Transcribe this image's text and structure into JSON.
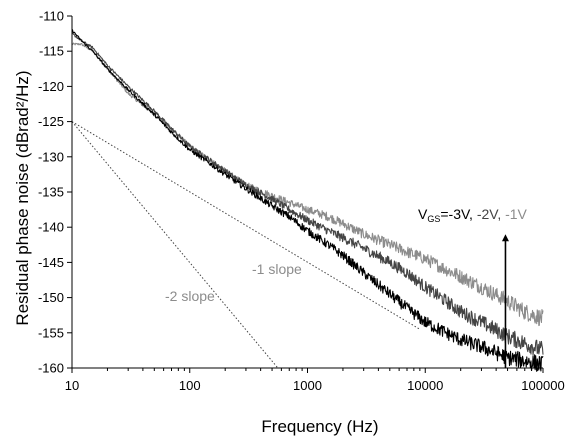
{
  "chart_data": {
    "type": "line",
    "title": "",
    "xlabel": "Frequency (Hz)",
    "ylabel": "Residual phase noise (dBrad²/Hz)",
    "xscale": "log",
    "xlim": [
      10,
      100000
    ],
    "ylim": [
      -160,
      -110
    ],
    "xticks": [
      10,
      100,
      1000,
      10000,
      100000
    ],
    "xtick_labels": [
      "10",
      "100",
      "1000",
      "10000",
      "100000"
    ],
    "yticks": [
      -110,
      -115,
      -120,
      -125,
      -130,
      -135,
      -140,
      -145,
      -150,
      -155,
      -160
    ],
    "ytick_labels": [
      "-110",
      "-115",
      "-120",
      "-125",
      "-130",
      "-135",
      "-140",
      "-145",
      "-150",
      "-155",
      "-160"
    ],
    "grid": false,
    "series": [
      {
        "color": "#000000",
        "x": [
          10,
          12,
          15,
          20,
          30,
          50,
          70,
          100,
          150,
          200,
          300,
          500,
          700,
          1000,
          1500,
          2000,
          3000,
          5000,
          7000,
          10000,
          15000,
          20000,
          30000,
          50000,
          70000,
          100000
        ],
        "y": [
          -112,
          -113.5,
          -115,
          -117.5,
          -120.5,
          -124,
          -126.5,
          -129,
          -131,
          -132.5,
          -134.5,
          -137,
          -138.5,
          -140.5,
          -142.5,
          -144,
          -146.5,
          -149.5,
          -151.5,
          -153.5,
          -155,
          -156,
          -157,
          -158.5,
          -159,
          -159.5
        ]
      },
      {
        "color": "#444444",
        "x": [
          10,
          12,
          15,
          20,
          30,
          50,
          70,
          100,
          150,
          200,
          300,
          500,
          700,
          1000,
          1500,
          2000,
          3000,
          5000,
          7000,
          10000,
          15000,
          20000,
          30000,
          50000,
          70000,
          100000
        ],
        "y": [
          -112.5,
          -113.5,
          -114.5,
          -117,
          -120,
          -123.5,
          -126,
          -128.5,
          -130.5,
          -132,
          -134,
          -136,
          -137.5,
          -139,
          -140.5,
          -141.5,
          -143,
          -145,
          -146.5,
          -148.5,
          -150.5,
          -152,
          -153.5,
          -155.5,
          -156.5,
          -157.5
        ]
      },
      {
        "color": "#8c8c8c",
        "x": [
          10,
          12,
          15,
          20,
          30,
          50,
          70,
          100,
          150,
          200,
          300,
          500,
          700,
          1000,
          1500,
          2000,
          3000,
          5000,
          7000,
          10000,
          15000,
          20000,
          30000,
          50000,
          70000,
          100000
        ],
        "y": [
          -114,
          -114,
          -115,
          -117.5,
          -121,
          -124,
          -126,
          -128.5,
          -130.5,
          -132,
          -134,
          -135.5,
          -136.5,
          -137.5,
          -138.5,
          -139.5,
          -141,
          -142.5,
          -143.5,
          -144.5,
          -146,
          -147,
          -148.5,
          -150.5,
          -152,
          -153
        ]
      }
    ],
    "reference_lines": [
      {
        "label": "-1 slope",
        "color": "#777777",
        "x": [
          10,
          9000
        ],
        "y": [
          -125,
          -154.5
        ]
      },
      {
        "label": "-2 slope",
        "color": "#777777",
        "x": [
          10,
          560
        ],
        "y": [
          -125,
          -160
        ]
      }
    ],
    "annotation": {
      "prefix": "V",
      "subscript": "GS",
      "parts": [
        {
          "text": "=-3V, ",
          "color": "#000000"
        },
        {
          "text": "-2V, ",
          "color": "#444444"
        },
        {
          "text": "-1V",
          "color": "#8c8c8c"
        }
      ],
      "arrow_x": 48000,
      "arrow_from": -160,
      "arrow_to": -141
    }
  }
}
